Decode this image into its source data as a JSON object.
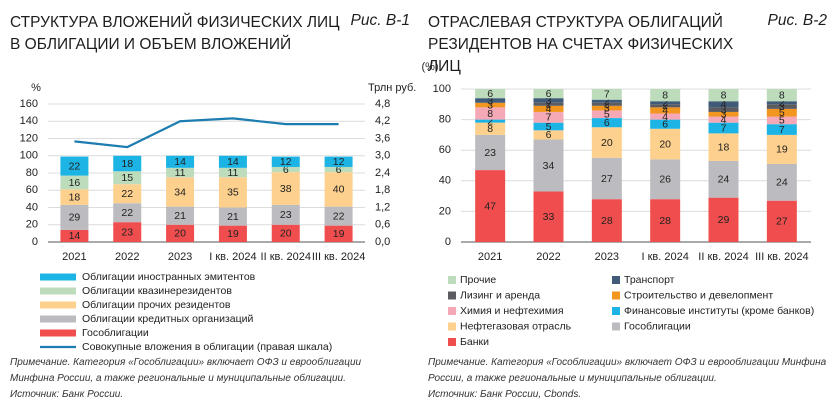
{
  "chart_data": [
    {
      "type": "bar",
      "stacked": true,
      "title": "СТРУКТУРА ВЛОЖЕНИЙ ФИЗИЧЕСКИХ ЛИЦ В ОБЛИГАЦИИ И ОБЪЕМ ВЛОЖЕНИЙ",
      "figure_label": "Рис. В-1",
      "y_unit": "%",
      "y2_unit": "Трлн руб.",
      "categories": [
        "2021",
        "2022",
        "2023",
        "I кв. 2024",
        "II кв. 2024",
        "III кв. 2024"
      ],
      "series": [
        {
          "name": "Облигации иностранных эмитентов",
          "color": "#1cb4e4",
          "values": [
            22,
            18,
            14,
            14,
            12,
            12
          ]
        },
        {
          "name": "Облигации квазинерезидентов",
          "color": "#bcdcbc",
          "values": [
            16,
            15,
            11,
            11,
            6,
            6
          ]
        },
        {
          "name": "Облигации прочих резидентов",
          "color": "#fdd08e",
          "values": [
            18,
            22,
            34,
            35,
            38,
            40
          ]
        },
        {
          "name": "Облигации кредитных организаций",
          "color": "#bcbcc0",
          "values": [
            29,
            22,
            21,
            21,
            23,
            22
          ]
        },
        {
          "name": "Гособлигации",
          "color": "#f04e4e",
          "values": [
            14,
            23,
            20,
            19,
            20,
            19
          ]
        },
        {
          "name": "Совокупные вложения в облигации (правая шкала)",
          "color": "#1d7db0",
          "type": "line",
          "axis": "y2",
          "values": [
            3.5,
            3.3,
            4.2,
            4.3,
            4.1,
            4.1
          ]
        }
      ],
      "ylim": [
        0,
        160
      ],
      "yticks": [
        0,
        20,
        40,
        60,
        80,
        100,
        120,
        140,
        160
      ],
      "y2lim": [
        0,
        4.8
      ],
      "y2ticks": [
        {
          "value": 0,
          "label": "0,0"
        },
        {
          "value": 0.6,
          "label": "0,6"
        },
        {
          "value": 1.2,
          "label": "1,2"
        },
        {
          "value": 1.8,
          "label": "1,8"
        },
        {
          "value": 2.4,
          "label": "2,4"
        },
        {
          "value": 3.0,
          "label": "3,0"
        },
        {
          "value": 3.6,
          "label": "3,6"
        },
        {
          "value": 4.2,
          "label": "4,2"
        },
        {
          "value": 4.8,
          "label": "4,8"
        }
      ],
      "grid": true,
      "note": "Примечание. Категория «Гособлигации» включает ОФЗ и еврооблигации Минфина России, а также региональные и муниципальные облигации.",
      "source": "Источник: Банк России."
    },
    {
      "type": "bar",
      "stacked": true,
      "title": "ОТРАСЛЕВАЯ СТРУКТУРА ОБЛИГАЦИЙ РЕЗИДЕНТОВ НА СЧЕТАХ ФИЗИЧЕСКИХ ЛИЦ",
      "figure_label": "Рис. В-2",
      "y_unit": "(%)",
      "categories": [
        "2021",
        "2022",
        "2023",
        "I кв. 2024",
        "II кв. 2024",
        "III кв. 2024"
      ],
      "series": [
        {
          "name": "Прочие",
          "color": "#bcdcbc",
          "values": [
            6,
            6,
            7,
            8,
            8,
            8
          ]
        },
        {
          "name": "Транспорт",
          "color": "#3f5b78",
          "values": [
            3,
            3,
            2,
            2,
            4,
            2
          ]
        },
        {
          "name": "Лизинг и аренда",
          "color": "#5c5c60",
          "values": [
            0,
            2,
            2,
            2,
            3,
            3
          ]
        },
        {
          "name": "Строительство и девелопмент",
          "color": "#f29620",
          "values": [
            3,
            4,
            3,
            4,
            3,
            5
          ]
        },
        {
          "name": "Химия и нефтехимия",
          "color": "#f5a8b6",
          "values": [
            8,
            7,
            5,
            4,
            4,
            5
          ]
        },
        {
          "name": "Финансовые институты (кроме банков)",
          "color": "#1cb4e4",
          "values": [
            2,
            5,
            6,
            6,
            7,
            7
          ]
        },
        {
          "name": "Нефтегазовая отрасль",
          "color": "#fdd08e",
          "values": [
            8,
            6,
            20,
            20,
            18,
            19
          ]
        },
        {
          "name": "Гособлигации",
          "color": "#bcbcc0",
          "values": [
            23,
            34,
            27,
            26,
            24,
            24
          ]
        },
        {
          "name": "Банки",
          "color": "#f04e4e",
          "values": [
            47,
            33,
            28,
            28,
            29,
            27
          ]
        }
      ],
      "ylim": [
        0,
        100
      ],
      "yticks": [
        0,
        20,
        40,
        60,
        80,
        100
      ],
      "grid": true,
      "note": "Примечание. Категория «Гособлигации» включает ОФЗ и еврооблигации Минфина России, а также региональные и муниципальные облигации.",
      "source": "Источник: Банк России, Cbonds."
    }
  ]
}
